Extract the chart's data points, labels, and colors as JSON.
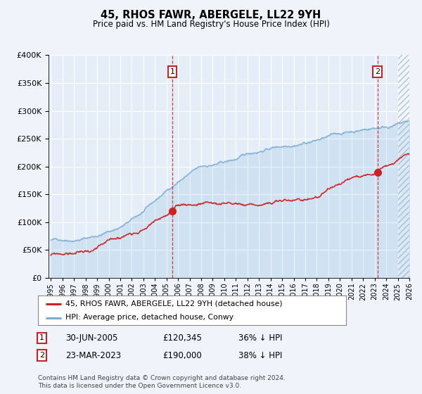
{
  "title": "45, RHOS FAWR, ABERGELE, LL22 9YH",
  "subtitle": "Price paid vs. HM Land Registry's House Price Index (HPI)",
  "legend_label_red": "45, RHOS FAWR, ABERGELE, LL22 9YH (detached house)",
  "legend_label_blue": "HPI: Average price, detached house, Conwy",
  "annotation1_label": "1",
  "annotation1_date": "30-JUN-2005",
  "annotation1_price": "£120,345",
  "annotation1_pct": "36% ↓ HPI",
  "annotation2_label": "2",
  "annotation2_date": "23-MAR-2023",
  "annotation2_price": "£190,000",
  "annotation2_pct": "38% ↓ HPI",
  "footnote": "Contains HM Land Registry data © Crown copyright and database right 2024.\nThis data is licensed under the Open Government Licence v3.0.",
  "ylim": [
    0,
    400000
  ],
  "yticks": [
    0,
    50000,
    100000,
    150000,
    200000,
    250000,
    300000,
    350000,
    400000
  ],
  "ytick_labels": [
    "£0",
    "£50K",
    "£100K",
    "£150K",
    "£200K",
    "£250K",
    "£300K",
    "£350K",
    "£400K"
  ],
  "background_color": "#f0f4fa",
  "plot_bg": "#e4edf8",
  "red_color": "#cc2222",
  "blue_color": "#7aadd4",
  "annotation1_year": 2005.5,
  "annotation2_year": 2023.25,
  "xstart": 1995,
  "xend": 2026,
  "sale1_price": 120345,
  "sale2_price": 190000
}
